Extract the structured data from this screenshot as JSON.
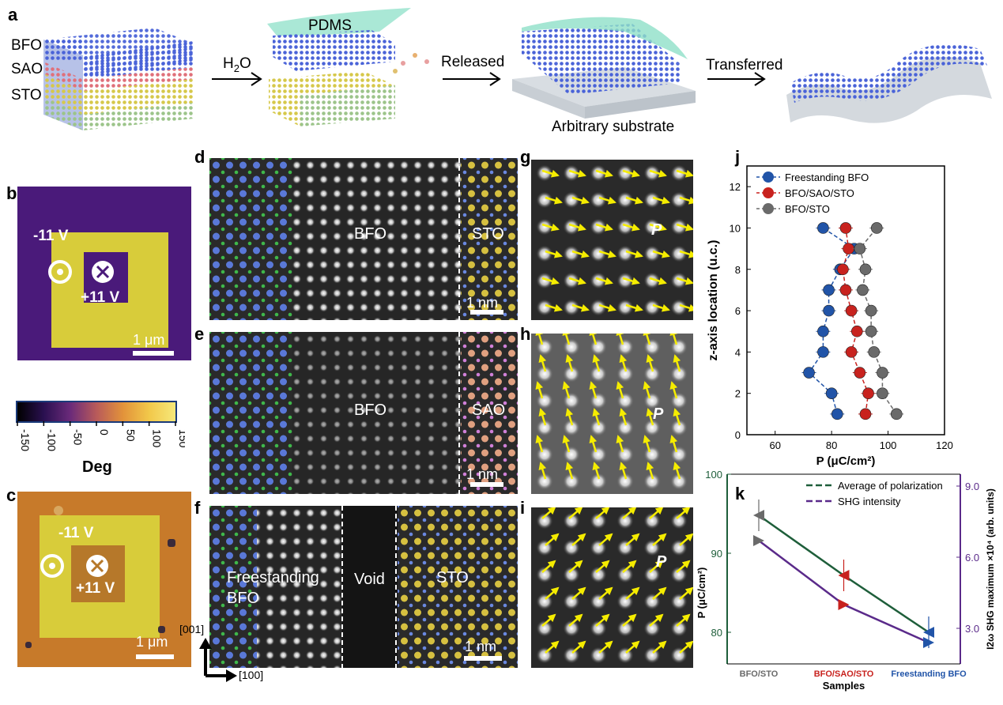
{
  "panels": {
    "a": {
      "label": "a",
      "layers": [
        "BFO",
        "SAO",
        "STO"
      ],
      "pdms": "PDMS",
      "step1": "H2O",
      "step2": "Released",
      "step3": "Transferred",
      "substrate": "Arbitrary substrate"
    },
    "b": {
      "label": "b",
      "neg": "-11 V",
      "pos": "+11 V",
      "scale": "1 μm"
    },
    "c": {
      "label": "c",
      "neg": "-11 V",
      "pos": "+11 V",
      "scale": "1 μm"
    },
    "colorbar": {
      "ticks": [
        "-150",
        "-100",
        "-50",
        "0",
        "50",
        "100",
        "150"
      ],
      "title": "Deg"
    },
    "d": {
      "label": "d",
      "left": "BFO",
      "right": "STO",
      "scale": "1 nm"
    },
    "e": {
      "label": "e",
      "left": "BFO",
      "right": "SAO",
      "scale": "1 nm"
    },
    "f": {
      "label": "f",
      "left1": "Freestanding",
      "left2": "BFO",
      "middle": "Void",
      "right": "STO",
      "scale": "1 nm",
      "axis_v": "[001]",
      "axis_h": "[100]"
    },
    "g": {
      "label": "g",
      "p": "P"
    },
    "h": {
      "label": "h",
      "p": "P"
    },
    "i": {
      "label": "i",
      "p": "P"
    }
  },
  "colors": {
    "purple_bg": "#4a1a7a",
    "yellow_domain": "#d8cc3a",
    "orange_bg": "#c77a2a",
    "series_blue": "#2154a8",
    "series_red": "#c8221e",
    "series_gray": "#6a6a6a",
    "series_green": "#1e5e3a",
    "series_purple": "#5a2a8a",
    "arrow_yellow": "#f5ec00"
  },
  "chart_data": [
    {
      "type": "scatter",
      "label": "j",
      "xlabel": "P (μC/cm²)",
      "ylabel": "z-axis location (u.c.)",
      "xlim": [
        50,
        120
      ],
      "ylim": [
        0,
        13
      ],
      "xticks": [
        "60",
        "80",
        "100",
        "120"
      ],
      "yticks": [
        "0",
        "2",
        "4",
        "6",
        "8",
        "10",
        "12"
      ],
      "legend": "top-left",
      "series": [
        {
          "name": "Freestanding BFO",
          "color": "#2154a8",
          "points": [
            [
              82,
              1
            ],
            [
              80,
              2
            ],
            [
              72,
              3
            ],
            [
              77,
              4
            ],
            [
              77,
              5
            ],
            [
              79,
              6
            ],
            [
              79,
              7
            ],
            [
              83,
              8
            ],
            [
              88,
              9
            ],
            [
              77,
              10
            ]
          ]
        },
        {
          "name": "BFO/SAO/STO",
          "color": "#c8221e",
          "points": [
            [
              92,
              1
            ],
            [
              93,
              2
            ],
            [
              90,
              3
            ],
            [
              87,
              4
            ],
            [
              89,
              5
            ],
            [
              87,
              6
            ],
            [
              85,
              7
            ],
            [
              84,
              8
            ],
            [
              86,
              9
            ],
            [
              85,
              10
            ]
          ]
        },
        {
          "name": "BFO/STO",
          "color": "#6a6a6a",
          "points": [
            [
              103,
              1
            ],
            [
              98,
              2
            ],
            [
              98,
              3
            ],
            [
              95,
              4
            ],
            [
              94,
              5
            ],
            [
              94,
              6
            ],
            [
              91,
              7
            ],
            [
              92,
              8
            ],
            [
              90,
              9
            ],
            [
              96,
              10
            ]
          ]
        }
      ]
    },
    {
      "type": "line",
      "label": "k",
      "xlabel": "Samples",
      "ylabel_left": "P (μC/cm²)",
      "ylabel_right": "I2ω SHG maximum ×10⁴ (arb. units)",
      "categories": [
        "BFO/STO",
        "BFO/SAO/STO",
        "Freestanding BFO"
      ],
      "category_colors": [
        "#6a6a6a",
        "#c8221e",
        "#2154a8"
      ],
      "ylim_left": [
        76,
        100
      ],
      "yticks_left": [
        "80",
        "90",
        "100"
      ],
      "ylim_right": [
        1.5,
        9.5
      ],
      "yticks_right": [
        "3.0",
        "6.0",
        "9.0"
      ],
      "legend": "top-right",
      "series": [
        {
          "name": "Average of polarization",
          "axis": "left",
          "color": "#1e5e3a",
          "values": [
            94.8,
            87.2,
            80.0
          ]
        },
        {
          "name": "SHG intensity",
          "axis": "right",
          "color": "#5a2a8a",
          "values": [
            6.7,
            4.0,
            2.4
          ]
        }
      ]
    }
  ]
}
